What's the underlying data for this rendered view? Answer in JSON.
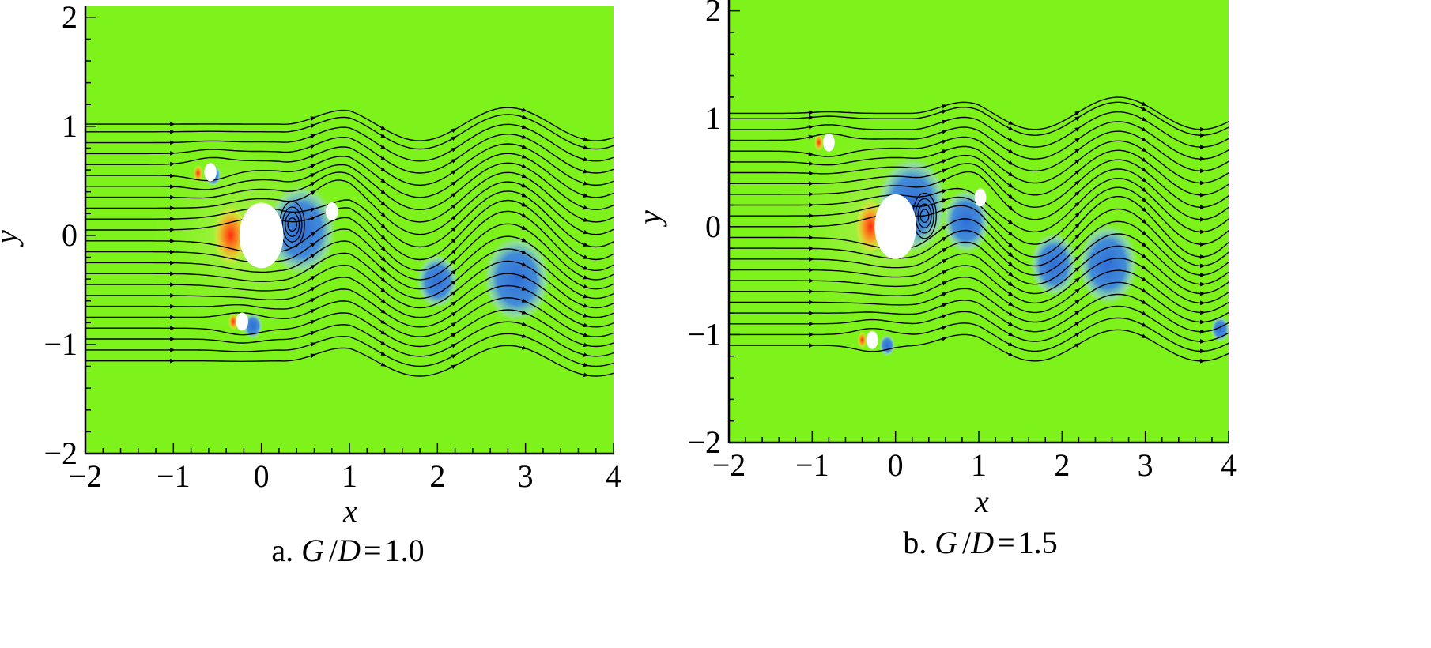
{
  "chart_data": [
    {
      "type": "heatmap",
      "panel_caption": "a. G/D=1.0",
      "caption_parts": {
        "prefix": "a. ",
        "var1": "G",
        "slash": "/",
        "var2": "D",
        "eq": "=",
        "value": "1.0"
      },
      "xlabel": "x",
      "ylabel": "y",
      "xlim": [
        -2,
        4
      ],
      "ylim": [
        -2,
        2.1
      ],
      "x_ticks": [
        "−2",
        "−1",
        "0",
        "1",
        "2",
        "3",
        "4"
      ],
      "x_tick_values": [
        -2,
        -1,
        0,
        1,
        2,
        3,
        4
      ],
      "y_ticks": [
        "−2",
        "−1",
        "0",
        "1",
        "2"
      ],
      "y_tick_values": [
        -2,
        -1,
        0,
        1,
        2
      ],
      "background_color": "#7ef21b",
      "cylinders": [
        {
          "x": 0.0,
          "y": 0.0,
          "d": 0.5
        },
        {
          "x": -0.58,
          "y": 0.58,
          "d": 0.14
        },
        {
          "x": -0.22,
          "y": -0.79,
          "d": 0.14
        },
        {
          "x": 0.8,
          "y": 0.22,
          "d": 0.14
        }
      ],
      "negative_vortices": [
        {
          "x": 0.45,
          "y": 0.05,
          "r": 0.42
        },
        {
          "x": 2.0,
          "y": -0.42,
          "r": 0.25
        },
        {
          "x": 2.9,
          "y": -0.4,
          "r": 0.4
        },
        {
          "x": -0.1,
          "y": -0.83,
          "r": 0.12
        },
        {
          "x": -0.55,
          "y": 0.55,
          "r": 0.1
        }
      ],
      "positive_regions": [
        {
          "x": -0.35,
          "y": 0.0,
          "r": 0.22
        },
        {
          "x": -0.72,
          "y": 0.57,
          "r": 0.06
        },
        {
          "x": -0.32,
          "y": -0.79,
          "r": 0.06
        }
      ],
      "streamline_count": 23,
      "streamline_y0": [
        -1.15,
        -1.05,
        -0.95,
        -0.85,
        -0.75,
        -0.65,
        -0.55,
        -0.45,
        -0.35,
        -0.25,
        -0.15,
        -0.05,
        0.05,
        0.15,
        0.25,
        0.35,
        0.45,
        0.55,
        0.65,
        0.75,
        0.85,
        0.95,
        1.02
      ]
    },
    {
      "type": "heatmap",
      "panel_caption": "b. G/D=1.5",
      "caption_parts": {
        "prefix": "b. ",
        "var1": "G",
        "slash": "/",
        "var2": "D",
        "eq": "=",
        "value": "1.5"
      },
      "xlabel": "x",
      "ylabel": "y",
      "xlim": [
        -2,
        4
      ],
      "ylim": [
        -2,
        2.1
      ],
      "x_ticks": [
        "−2",
        "−1",
        "0",
        "1",
        "2",
        "3",
        "4"
      ],
      "x_tick_values": [
        -2,
        -1,
        0,
        1,
        2,
        3,
        4
      ],
      "y_ticks": [
        "−2",
        "−1",
        "0",
        "1",
        "2"
      ],
      "y_tick_values": [
        -2,
        -1,
        0,
        1,
        2
      ],
      "background_color": "#7ef21b",
      "cylinders": [
        {
          "x": 0.0,
          "y": 0.0,
          "d": 0.5
        },
        {
          "x": -0.8,
          "y": 0.78,
          "d": 0.14
        },
        {
          "x": -0.28,
          "y": -1.05,
          "d": 0.14
        },
        {
          "x": 1.02,
          "y": 0.27,
          "d": 0.14
        }
      ],
      "negative_vortices": [
        {
          "x": 0.2,
          "y": 0.2,
          "r": 0.45
        },
        {
          "x": 0.85,
          "y": 0.05,
          "r": 0.3
        },
        {
          "x": 1.9,
          "y": -0.35,
          "r": 0.3
        },
        {
          "x": 2.55,
          "y": -0.35,
          "r": 0.38
        },
        {
          "x": -0.1,
          "y": -1.1,
          "r": 0.1
        },
        {
          "x": 3.9,
          "y": -0.95,
          "r": 0.12
        }
      ],
      "positive_regions": [
        {
          "x": -0.3,
          "y": 0.0,
          "r": 0.2
        },
        {
          "x": -0.92,
          "y": 0.78,
          "r": 0.06
        },
        {
          "x": -0.4,
          "y": -1.05,
          "r": 0.06
        }
      ],
      "streamline_count": 23,
      "streamline_y0": [
        -1.1,
        -1.0,
        -0.9,
        -0.8,
        -0.7,
        -0.6,
        -0.5,
        -0.4,
        -0.3,
        -0.2,
        -0.1,
        0.0,
        0.1,
        0.2,
        0.3,
        0.4,
        0.5,
        0.6,
        0.7,
        0.8,
        0.9,
        1.0,
        1.05
      ]
    }
  ]
}
